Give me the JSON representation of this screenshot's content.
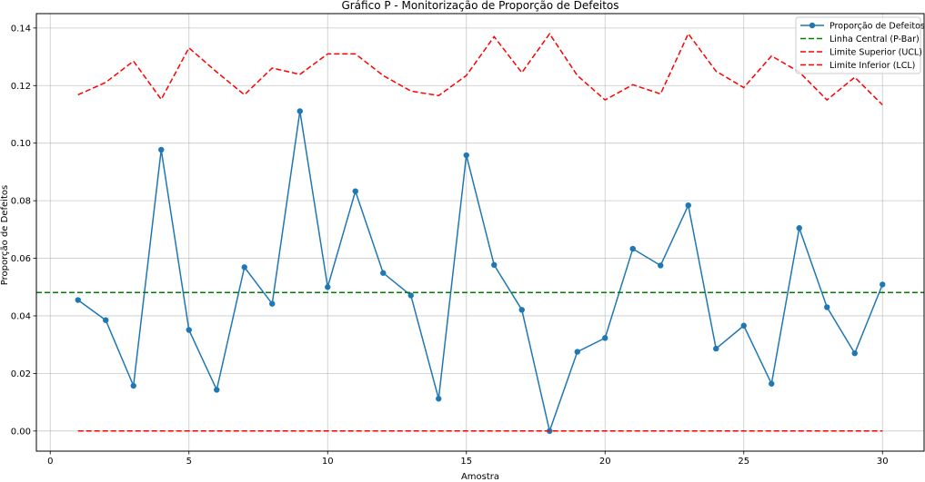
{
  "chart_data": {
    "type": "line",
    "title": "Gráfico P - Monitorização de Proporção de Defeitos",
    "xlabel": "Amostra",
    "ylabel": "Proporção de Defeitos",
    "xlim": [
      -0.5,
      31.5
    ],
    "ylim": [
      -0.007,
      0.145
    ],
    "xticks": [
      0,
      5,
      10,
      15,
      20,
      25,
      30
    ],
    "xtick_labels": [
      "0",
      "5",
      "10",
      "15",
      "20",
      "25",
      "30"
    ],
    "yticks": [
      0.0,
      0.02,
      0.04,
      0.06,
      0.08,
      0.1,
      0.12,
      0.14
    ],
    "ytick_labels": [
      "0.00",
      "0.02",
      "0.04",
      "0.06",
      "0.08",
      "0.10",
      "0.12",
      "0.14"
    ],
    "grid": true,
    "legend_position": "top-right",
    "x": [
      1,
      2,
      3,
      4,
      5,
      6,
      7,
      8,
      9,
      10,
      11,
      12,
      13,
      14,
      15,
      16,
      17,
      18,
      19,
      20,
      21,
      22,
      23,
      24,
      25,
      26,
      27,
      28,
      29,
      30
    ],
    "series": [
      {
        "name": "Proporção de Defeitos",
        "style": "line-marker",
        "color": "#1f77b4",
        "values": [
          0.0455,
          0.0385,
          0.0157,
          0.0977,
          0.0351,
          0.0143,
          0.0569,
          0.0442,
          0.1111,
          0.05,
          0.0833,
          0.0549,
          0.0471,
          0.0112,
          0.0958,
          0.0577,
          0.0421,
          0.0,
          0.0275,
          0.0323,
          0.0633,
          0.0575,
          0.0784,
          0.0286,
          0.0366,
          0.0164,
          0.0705,
          0.043,
          0.027,
          0.0509
        ]
      },
      {
        "name": "Linha Central (P-Bar)",
        "style": "dashed-hline",
        "color": "#008000",
        "value": 0.0481
      },
      {
        "name": "Limite Superior (UCL)",
        "style": "dashed",
        "color": "#ff0000",
        "values": [
          0.1168,
          0.1211,
          0.1285,
          0.1152,
          0.1331,
          0.1247,
          0.1168,
          0.1261,
          0.1239,
          0.131,
          0.131,
          0.1235,
          0.1181,
          0.1165,
          0.1235,
          0.137,
          0.1245,
          0.138,
          0.1235,
          0.115,
          0.1203,
          0.1171,
          0.138,
          0.125,
          0.1193,
          0.1303,
          0.1247,
          0.115,
          0.1229,
          0.1133
        ]
      },
      {
        "name": "Limite Inferior (LCL)",
        "style": "dashed",
        "color": "#ff0000",
        "values": [
          0,
          0,
          0,
          0,
          0,
          0,
          0,
          0,
          0,
          0,
          0,
          0,
          0,
          0,
          0,
          0,
          0,
          0,
          0,
          0,
          0,
          0,
          0,
          0,
          0,
          0,
          0,
          0,
          0,
          0
        ]
      }
    ]
  }
}
